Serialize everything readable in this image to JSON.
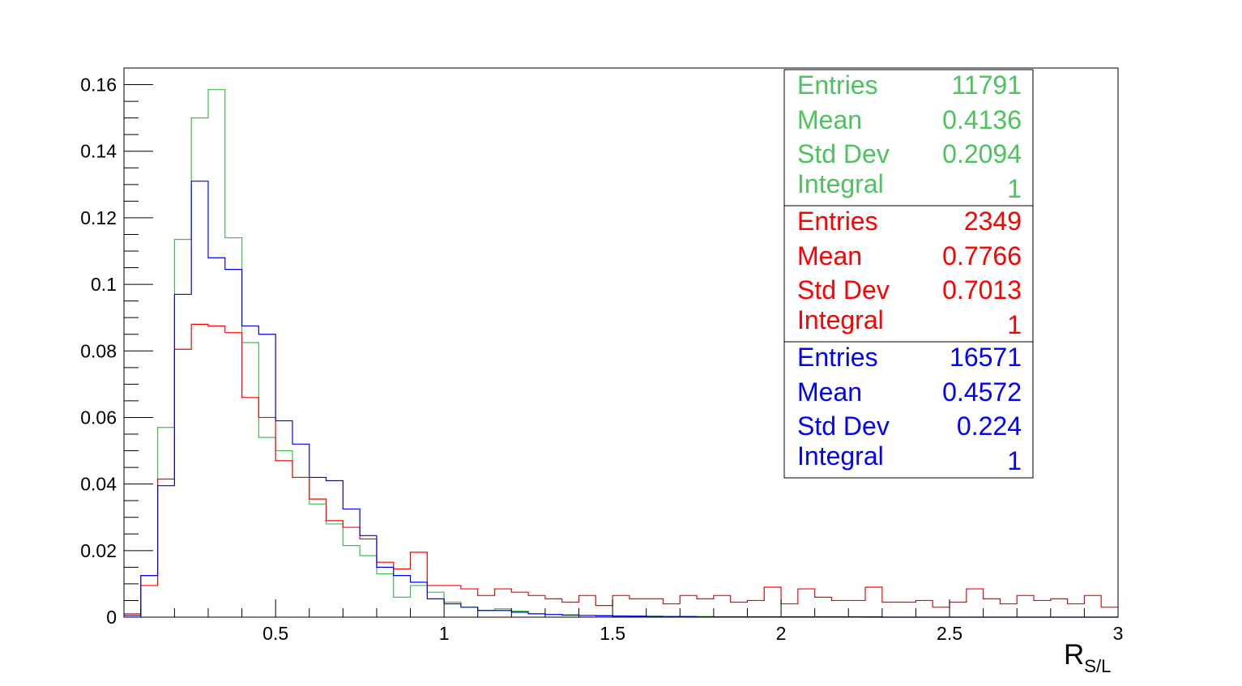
{
  "chart_data": {
    "type": "histogram",
    "title": "",
    "xlabel": "R",
    "xlabel_subscript": "S/L",
    "ylabel": "",
    "xlim": [
      0.05,
      3.0
    ],
    "ylim": [
      0,
      0.165
    ],
    "grid": false,
    "bin_width": 0.05,
    "bin_start": 0.05,
    "x_ticks": [
      {
        "value": 0.5,
        "label": "0.5"
      },
      {
        "value": 1.0,
        "label": "1"
      },
      {
        "value": 1.5,
        "label": "1.5"
      },
      {
        "value": 2.0,
        "label": "2"
      },
      {
        "value": 2.5,
        "label": "2.5"
      },
      {
        "value": 3.0,
        "label": "3"
      }
    ],
    "y_ticks": [
      {
        "value": 0,
        "label": "0"
      },
      {
        "value": 0.02,
        "label": "0.02"
      },
      {
        "value": 0.04,
        "label": "0.04"
      },
      {
        "value": 0.06,
        "label": "0.06"
      },
      {
        "value": 0.08,
        "label": "0.08"
      },
      {
        "value": 0.1,
        "label": "0.1"
      },
      {
        "value": 0.12,
        "label": "0.12"
      },
      {
        "value": 0.14,
        "label": "0.14"
      },
      {
        "value": 0.16,
        "label": "0.16"
      }
    ],
    "series": [
      {
        "color": "#3cbd53",
        "values": [
          0.0005,
          0.0125,
          0.057,
          0.1135,
          0.15,
          0.1585,
          0.114,
          0.0825,
          0.054,
          0.05,
          0.042,
          0.034,
          0.028,
          0.0215,
          0.0185,
          0.013,
          0.006,
          0.0095,
          0.0075,
          0.0045,
          0.003,
          0.002,
          0.0025,
          0.0018,
          0.001,
          0.0008,
          0.0007,
          0.0005,
          0.0005,
          0.0004,
          0.0003,
          0.0003,
          0.0002,
          0.0002,
          0.0002,
          0.0001,
          0.0001,
          0.0001,
          0.0001,
          0.0001,
          0.0001,
          0.0001,
          0.0001,
          0.0001,
          0,
          0,
          0,
          0,
          0,
          0,
          0,
          0,
          0,
          0,
          0,
          0,
          0,
          0,
          0
        ]
      },
      {
        "color": "#ff0000",
        "values": [
          0.001,
          0.0095,
          0.0415,
          0.0805,
          0.088,
          0.0875,
          0.0855,
          0.066,
          0.06,
          0.047,
          0.042,
          0.0355,
          0.029,
          0.027,
          0.0235,
          0.0165,
          0.0145,
          0.0195,
          0.0095,
          0.0095,
          0.0085,
          0.0065,
          0.0085,
          0.0075,
          0.0065,
          0.0055,
          0.0045,
          0.0065,
          0.0035,
          0.0065,
          0.0055,
          0.0055,
          0.004,
          0.0065,
          0.0055,
          0.0065,
          0.0045,
          0.005,
          0.009,
          0.004,
          0.0085,
          0.006,
          0.005,
          0.005,
          0.009,
          0.0045,
          0.0045,
          0.005,
          0.003,
          0.0045,
          0.0085,
          0.0055,
          0.004,
          0.0065,
          0.005,
          0.0055,
          0.004,
          0.0065,
          0.003
        ]
      },
      {
        "color": "#0000ff",
        "values": [
          0.0005,
          0.0125,
          0.0395,
          0.097,
          0.131,
          0.108,
          0.1045,
          0.0875,
          0.085,
          0.059,
          0.052,
          0.042,
          0.041,
          0.0325,
          0.0245,
          0.015,
          0.0125,
          0.0105,
          0.0055,
          0.004,
          0.003,
          0.002,
          0.002,
          0.0015,
          0.001,
          0.0008,
          0.0006,
          0.0005,
          0.0004,
          0.0003,
          0.0003,
          0.0002,
          0.0002,
          0.0002,
          0.0001,
          0.0001,
          0.0001,
          0.0001,
          0.0001,
          0.0001,
          0.0001,
          0.0001,
          0.0001,
          0.0001,
          0.0001,
          0,
          0,
          0,
          0,
          0,
          0,
          0,
          0,
          0,
          0,
          0,
          0,
          0,
          0
        ]
      }
    ],
    "legend_placement": "top-right",
    "stat_boxes": [
      {
        "color": "#4cc35f",
        "rows": [
          {
            "label": "Entries",
            "value": "11791"
          },
          {
            "label": "Mean",
            "value": "0.4136"
          },
          {
            "label": "Std Dev",
            "value": "0.2094"
          },
          {
            "label": "Integral",
            "value": "1"
          }
        ]
      },
      {
        "color": "#ff0000",
        "rows": [
          {
            "label": "Entries",
            "value": "2349"
          },
          {
            "label": "Mean",
            "value": "0.7766"
          },
          {
            "label": "Std Dev",
            "value": "0.7013"
          },
          {
            "label": "Integral",
            "value": "1"
          }
        ]
      },
      {
        "color": "#0000ff",
        "rows": [
          {
            "label": "Entries",
            "value": "16571"
          },
          {
            "label": "Mean",
            "value": "0.4572"
          },
          {
            "label": "Std Dev",
            "value": "0.224"
          },
          {
            "label": "Integral",
            "value": "1"
          }
        ]
      }
    ]
  }
}
